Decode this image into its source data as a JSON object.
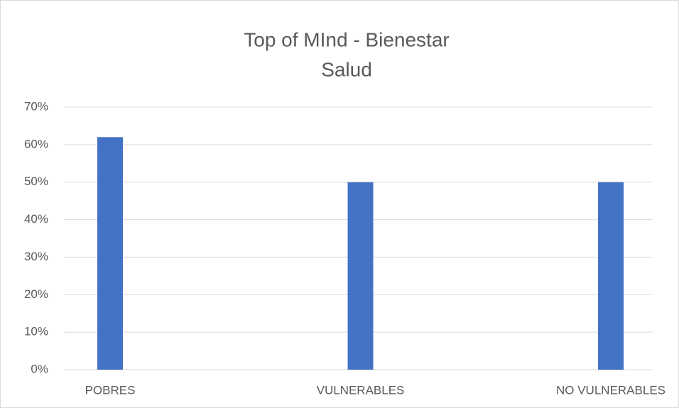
{
  "chart_data": {
    "type": "bar",
    "title": [
      "Top of MInd - Bienestar",
      "Salud"
    ],
    "categories": [
      "POBRES",
      "VULNERABLES",
      "NO VULNERABLES"
    ],
    "values": [
      62,
      50,
      50
    ],
    "color": "#4472c4",
    "ylim": [
      0,
      70
    ],
    "yticks": [
      {
        "value": 0,
        "label": "0%"
      },
      {
        "value": 10,
        "label": "10%"
      },
      {
        "value": 20,
        "label": "20%"
      },
      {
        "value": 30,
        "label": "30%"
      },
      {
        "value": 40,
        "label": "40%"
      },
      {
        "value": 50,
        "label": "50%"
      },
      {
        "value": 60,
        "label": "60%"
      },
      {
        "value": 70,
        "label": "70%"
      }
    ],
    "grid": true
  }
}
